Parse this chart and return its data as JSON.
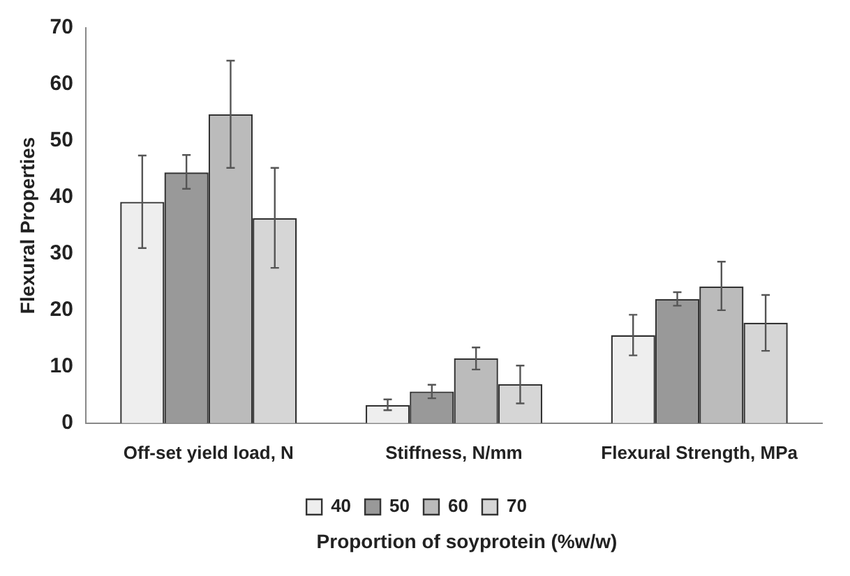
{
  "chart_data": {
    "type": "bar",
    "ylabel": "Flexural Properties",
    "xlabel": "Proportion of soyprotein (%w/w)",
    "categories": [
      "Off-set yield load, N",
      "Stiffness, N/mm",
      "Flexural Strength, MPa"
    ],
    "series": [
      {
        "name": "40",
        "color": "#eeeeee",
        "values": [
          39.2,
          3.2,
          15.6
        ],
        "errors": [
          [
            31,
            47.4
          ],
          [
            2.3,
            4.2
          ],
          [
            12,
            19.2
          ]
        ]
      },
      {
        "name": "50",
        "color": "#999999",
        "values": [
          44.4,
          5.6,
          22
        ],
        "errors": [
          [
            41.5,
            47.5
          ],
          [
            4.4,
            6.8
          ],
          [
            20.8,
            23.2
          ]
        ]
      },
      {
        "name": "60",
        "color": "#bbbbbb",
        "values": [
          54.7,
          11.5,
          24.2
        ],
        "errors": [
          [
            45.2,
            64.2
          ],
          [
            9.5,
            13.4
          ],
          [
            20,
            28.6
          ]
        ]
      },
      {
        "name": "70",
        "color": "#d6d6d6",
        "values": [
          36.3,
          6.9,
          17.8
        ],
        "errors": [
          [
            27.5,
            45.2
          ],
          [
            3.5,
            10.2
          ],
          [
            12.8,
            22.7
          ]
        ]
      }
    ],
    "ylim": [
      0,
      70
    ],
    "yticks": [
      0,
      10,
      20,
      30,
      40,
      50,
      60,
      70
    ],
    "grid": false,
    "legend": "bottom"
  }
}
